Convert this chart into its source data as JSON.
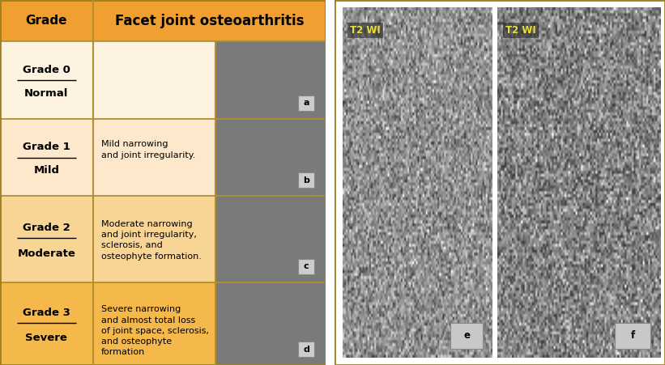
{
  "title": "Facet joint osteoarthritis",
  "grade_col_header": "Grade",
  "header_bg": "#f0a030",
  "border_color": "#b09030",
  "grades": [
    {
      "grade_label": "Grade 0",
      "grade_sub": "Normal",
      "description": "",
      "label": "a",
      "row_bg": "#fef2e0"
    },
    {
      "grade_label": "Grade 1",
      "grade_sub": "Mild",
      "description": "Mild narrowing\nand joint irregularity.",
      "label": "b",
      "row_bg": "#fde8cc"
    },
    {
      "grade_label": "Grade 2",
      "grade_sub": "Moderate",
      "description": "Moderate narrowing\nand joint irregularity,\nsclerosis, and\nosteophyte formation.",
      "label": "c",
      "row_bg": "#f9d595"
    },
    {
      "grade_label": "Grade 3",
      "grade_sub": "Severe",
      "description": "Severe narrowing\nand almost total loss\nof joint space, sclerosis,\nand osteophyte\nformation",
      "label": "d",
      "row_bg": "#f5b84a"
    }
  ],
  "mri_labels": [
    "e",
    "f"
  ],
  "mri_tag": "T2 WI",
  "fig_width": 8.21,
  "fig_height": 4.51,
  "dpi": 100
}
